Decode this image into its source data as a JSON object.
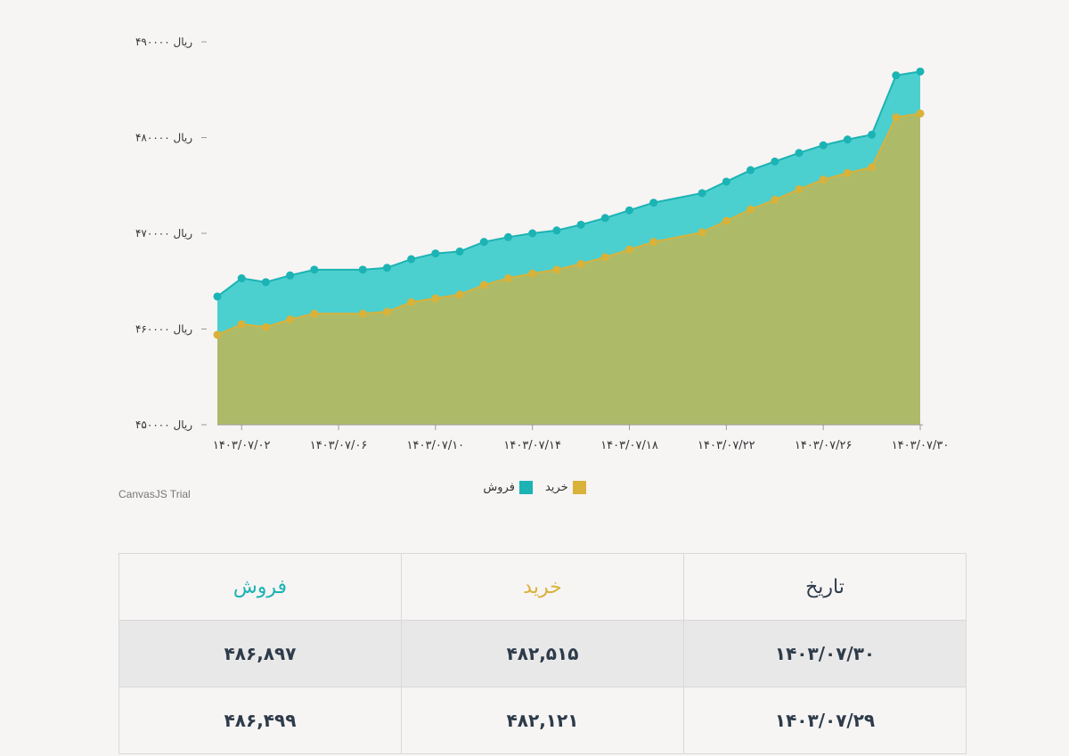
{
  "chart_data": {
    "type": "area",
    "y_ticks": [
      "۴۹۰۰۰۰ ریال",
      "۴۸۰۰۰۰ ریال",
      "۴۷۰۰۰۰ ریال",
      "۴۶۰۰۰۰ ریال",
      "۴۵۰۰۰۰ ریال"
    ],
    "y_tick_values": [
      490000,
      480000,
      470000,
      460000,
      450000
    ],
    "ylim": [
      450000,
      490000
    ],
    "x_ticks": [
      "۱۴۰۳/۰۷/۰۲",
      "۱۴۰۳/۰۷/۰۶",
      "۱۴۰۳/۰۷/۱۰",
      "۱۴۰۳/۰۷/۱۴",
      "۱۴۰۳/۰۷/۱۸",
      "۱۴۰۳/۰۷/۲۲",
      "۱۴۰۳/۰۷/۲۶",
      "۱۴۰۳/۰۷/۳۰"
    ],
    "x_tick_days": [
      2,
      6,
      10,
      14,
      18,
      22,
      26,
      30
    ],
    "x": [
      1,
      2,
      3,
      4,
      5,
      7,
      8,
      9,
      10,
      11,
      12,
      13,
      14,
      15,
      16,
      17,
      18,
      19,
      21,
      22,
      23,
      24,
      25,
      26,
      27,
      28,
      29,
      30
    ],
    "series": [
      {
        "name": "فروش",
        "color": "#1bb3b3",
        "fill": "#4ccfcf",
        "values": [
          463400,
          465300,
          464900,
          465600,
          466200,
          466200,
          466400,
          467300,
          467900,
          468100,
          469100,
          469600,
          470000,
          470300,
          470900,
          471600,
          472400,
          473200,
          474200,
          475400,
          476600,
          477500,
          478400,
          479200,
          479800,
          480300,
          486499,
          486897
        ]
      },
      {
        "name": "خرید",
        "color": "#d9b23a",
        "fill": "#adbb68",
        "values": [
          459400,
          460500,
          460200,
          461000,
          461600,
          461600,
          461800,
          462800,
          463200,
          463600,
          464600,
          465300,
          465800,
          466200,
          466800,
          467500,
          468300,
          469100,
          470100,
          471300,
          472500,
          473500,
          474600,
          475600,
          476300,
          476900,
          482121,
          482515
        ]
      }
    ],
    "legend": "bottom-center"
  },
  "watermark": "CanvasJS Trial",
  "table": {
    "headers": {
      "date": "تاریخ",
      "buy": "خرید",
      "sell": "فروش"
    },
    "header_colors": {
      "date": "#2d3b4a",
      "buy": "#d9b23a",
      "sell": "#1bb3b3"
    },
    "rows": [
      {
        "date": "۱۴۰۳/۰۷/۳۰",
        "buy": "۴۸۲,۵۱۵",
        "sell": "۴۸۶,۸۹۷"
      },
      {
        "date": "۱۴۰۳/۰۷/۲۹",
        "buy": "۴۸۲,۱۲۱",
        "sell": "۴۸۶,۴۹۹"
      }
    ]
  }
}
